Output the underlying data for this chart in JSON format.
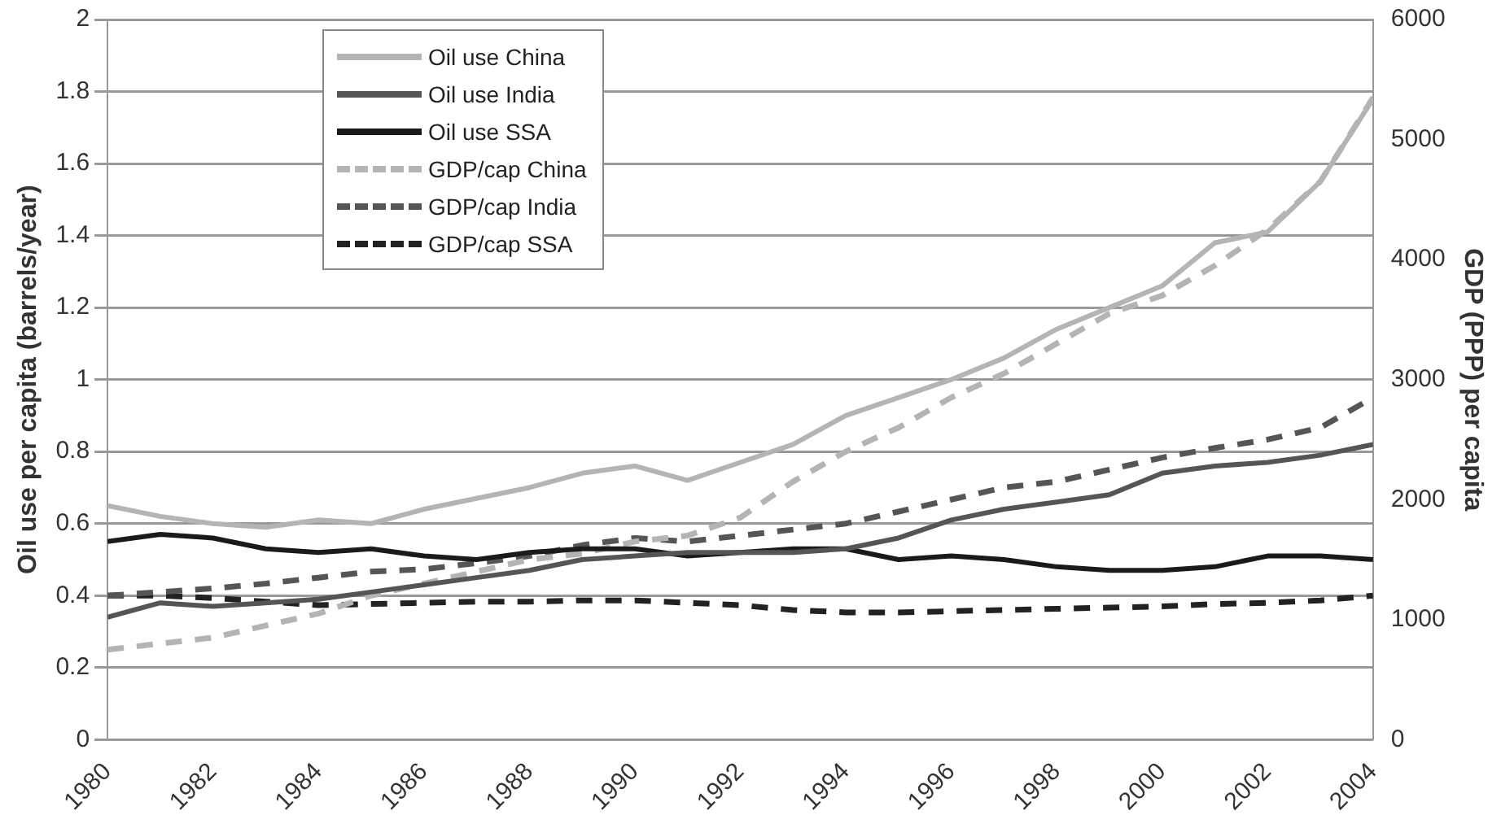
{
  "chart_data": {
    "type": "line",
    "xlabel": null,
    "ylabel": "Oil use per capita (barrels/year)",
    "y2label": "GDP (PPP) per capita",
    "x": [
      1980,
      1981,
      1982,
      1983,
      1984,
      1985,
      1986,
      1987,
      1988,
      1989,
      1990,
      1991,
      1992,
      1993,
      1994,
      1995,
      1996,
      1997,
      1998,
      1999,
      2000,
      2001,
      2002,
      2003,
      2004
    ],
    "xlim": [
      1980,
      2004
    ],
    "xticks": [
      1980,
      1982,
      1984,
      1986,
      1988,
      1990,
      1992,
      1994,
      1996,
      1998,
      2000,
      2002,
      2004
    ],
    "ylim": [
      0,
      2
    ],
    "yticks": [
      0,
      0.2,
      0.4,
      0.6,
      0.8,
      1,
      1.2,
      1.4,
      1.6,
      1.8,
      2
    ],
    "y2lim": [
      0,
      6000
    ],
    "y2ticks": [
      0,
      1000,
      2000,
      3000,
      4000,
      5000,
      6000
    ],
    "grid": "y",
    "legend": "top left",
    "marker": "none",
    "series": [
      {
        "name": "Oil use China",
        "color": "#b4b4b4",
        "line_style": "solid",
        "values": [
          0.65,
          0.62,
          0.6,
          0.59,
          0.61,
          0.6,
          0.64,
          0.67,
          0.7,
          0.74,
          0.76,
          0.72,
          0.77,
          0.82,
          0.9,
          0.95,
          1.0,
          1.06,
          1.14,
          1.2,
          1.26,
          1.38,
          1.41,
          1.55,
          1.78
        ]
      },
      {
        "name": "Oil use India",
        "color": "#555555",
        "line_style": "solid",
        "values": [
          0.34,
          0.38,
          0.37,
          0.38,
          0.39,
          0.41,
          0.43,
          0.45,
          0.47,
          0.5,
          0.51,
          0.52,
          0.52,
          0.52,
          0.53,
          0.56,
          0.61,
          0.64,
          0.66,
          0.68,
          0.74,
          0.76,
          0.77,
          0.79,
          0.82
        ]
      },
      {
        "name": "Oil use SSA",
        "color": "#1a1a1a",
        "line_style": "solid",
        "values": [
          0.55,
          0.57,
          0.56,
          0.53,
          0.52,
          0.53,
          0.51,
          0.5,
          0.52,
          0.53,
          0.53,
          0.51,
          0.52,
          0.53,
          0.53,
          0.5,
          0.51,
          0.5,
          0.48,
          0.47,
          0.47,
          0.48,
          0.51,
          0.51,
          0.5
        ]
      },
      {
        "name": "GDP/cap China",
        "color": "#b4b4b4",
        "line_style": "dashed",
        "axis": "y2",
        "values": [
          750,
          800,
          850,
          950,
          1050,
          1200,
          1300,
          1400,
          1500,
          1550,
          1650,
          1700,
          1850,
          2150,
          2400,
          2600,
          2850,
          3050,
          3300,
          3550,
          3700,
          3950,
          4250,
          4650,
          5350
        ]
      },
      {
        "name": "GDP/cap India",
        "color": "#555555",
        "line_style": "dashed",
        "axis": "y2",
        "values": [
          1200,
          1230,
          1260,
          1300,
          1350,
          1400,
          1420,
          1470,
          1530,
          1620,
          1680,
          1650,
          1700,
          1750,
          1800,
          1900,
          2000,
          2100,
          2150,
          2250,
          2350,
          2430,
          2500,
          2600,
          2850
        ]
      },
      {
        "name": "GDP/cap SSA",
        "color": "#222222",
        "line_style": "dashed",
        "axis": "y2",
        "values": [
          1200,
          1200,
          1180,
          1150,
          1120,
          1130,
          1140,
          1150,
          1150,
          1160,
          1160,
          1140,
          1120,
          1080,
          1060,
          1060,
          1070,
          1080,
          1090,
          1100,
          1110,
          1130,
          1140,
          1160,
          1200
        ]
      }
    ]
  }
}
